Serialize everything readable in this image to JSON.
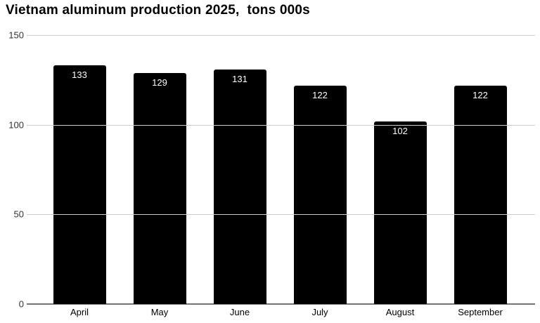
{
  "chart_data": {
    "type": "bar",
    "title": "Vietnam aluminum production 2025,  tons 000s",
    "categories": [
      "April",
      "May",
      "June",
      "July",
      "August",
      "September"
    ],
    "values": [
      133,
      129,
      131,
      122,
      102,
      122
    ],
    "xlabel": "",
    "ylabel": "",
    "ylim": [
      0,
      150
    ],
    "yticks": [
      0,
      50,
      100,
      150
    ],
    "grid": true,
    "legend": "none",
    "bar_color": "#000000",
    "value_label_color": "#ffffff",
    "gridline_color": "#cccccc",
    "axis_line_color": "#757575",
    "tick_label_color": "#333333",
    "title_color": "#000000",
    "background_color": "#ffffff"
  }
}
